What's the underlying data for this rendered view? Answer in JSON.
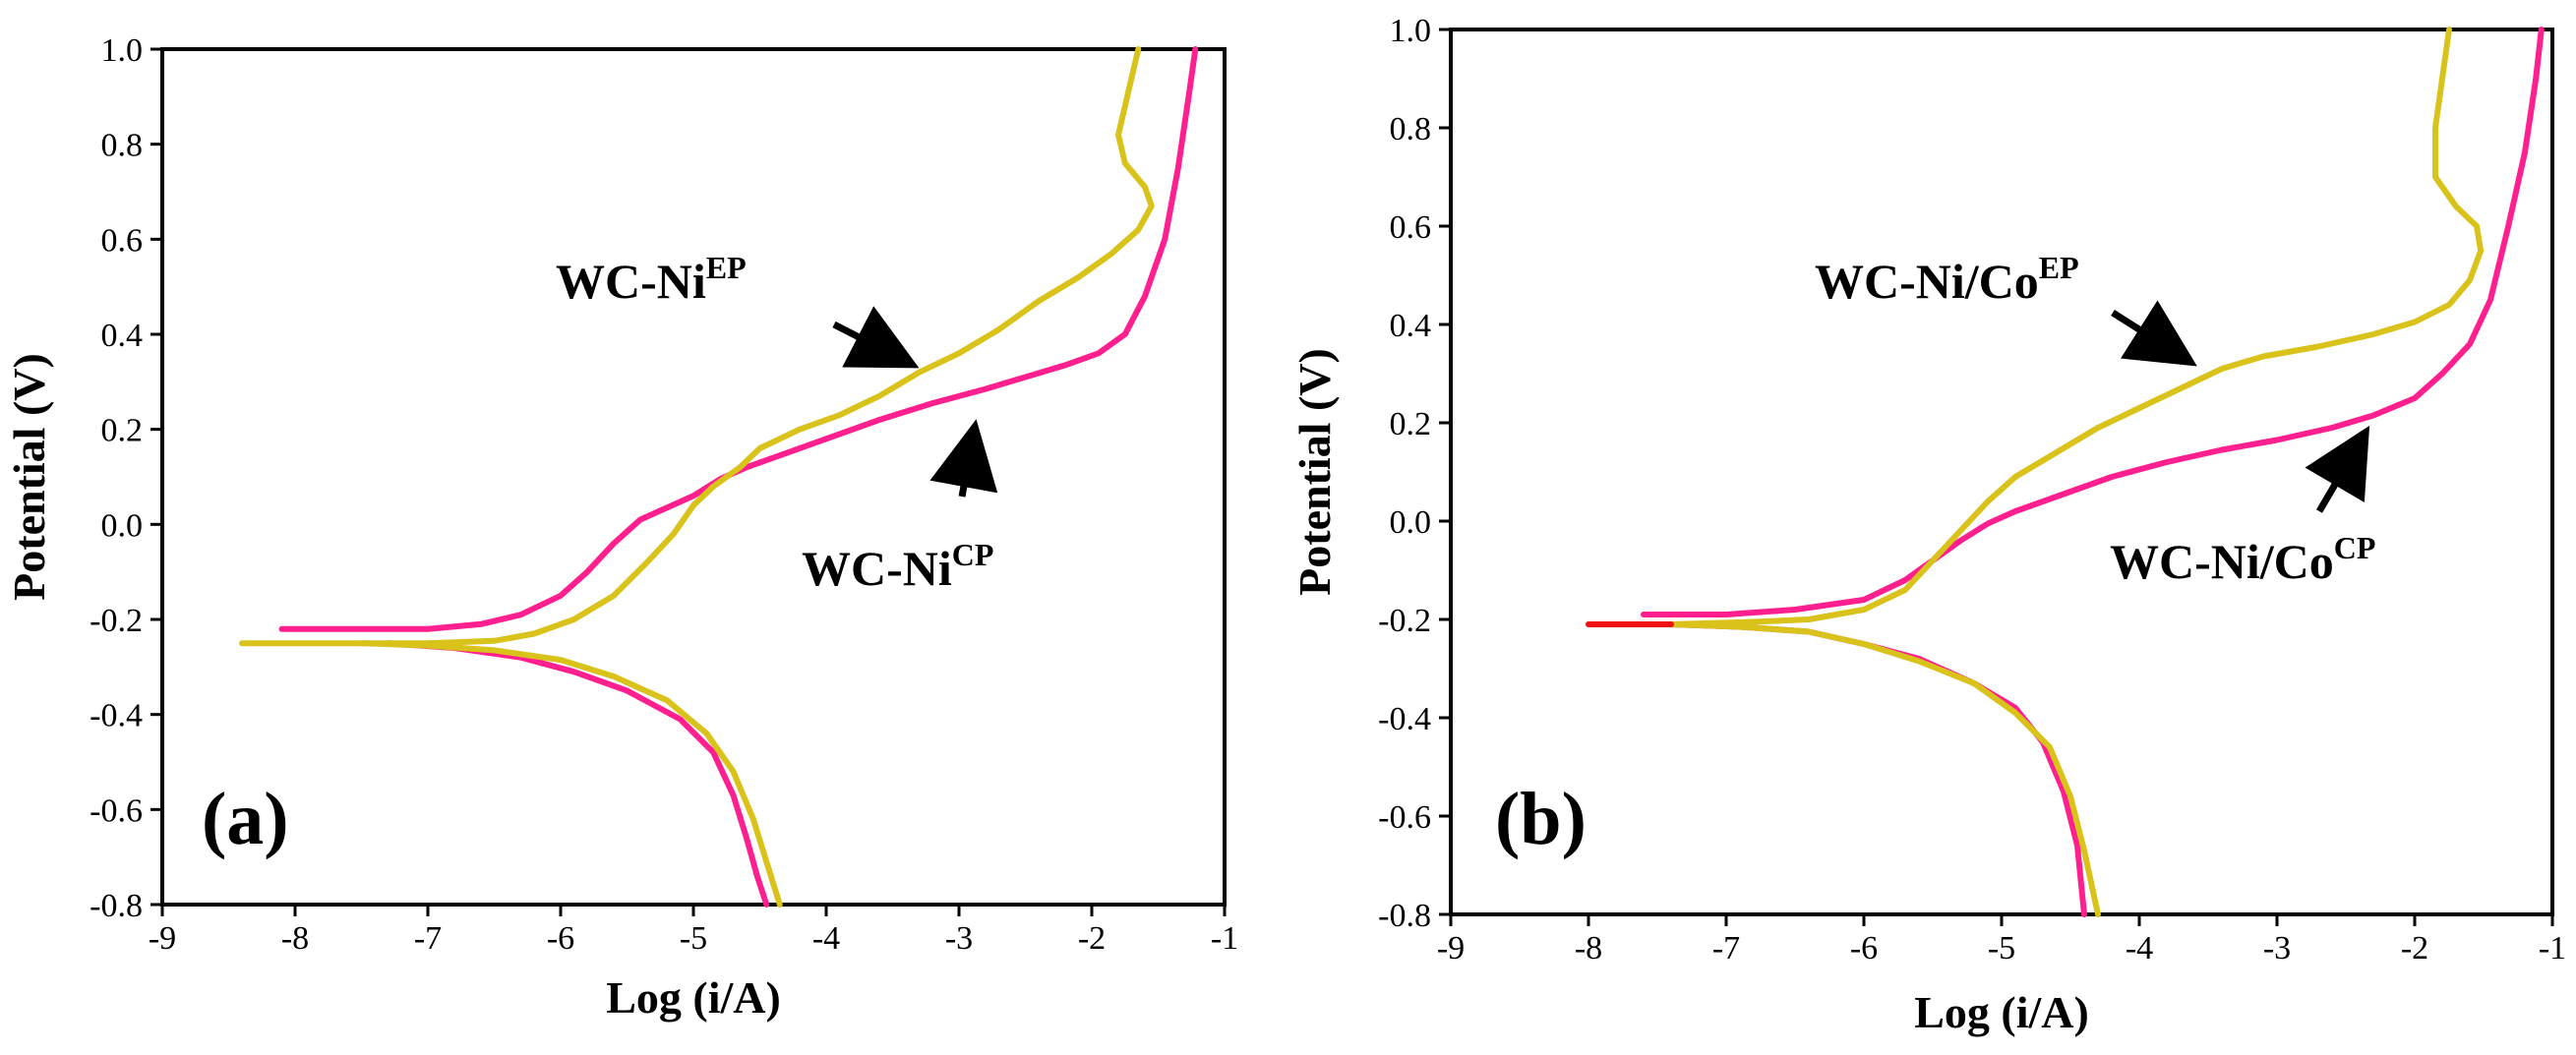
{
  "chart_data": [
    {
      "type": "line",
      "panel_label": "(a)",
      "xlabel": "Log (i/A)",
      "ylabel": "Potential (V)",
      "xlim": [
        -9,
        -1
      ],
      "ylim": [
        -0.8,
        1.0
      ],
      "xticks": [
        "-9",
        "-8",
        "-7",
        "-6",
        "-5",
        "-4",
        "-3",
        "-2",
        "-1"
      ],
      "yticks": [
        "-0.8",
        "-0.6",
        "-0.4",
        "-0.2",
        "0.0",
        "0.2",
        "0.4",
        "0.6",
        "0.8",
        "1.0"
      ],
      "series": [
        {
          "name": "WC-NiCP",
          "color": "#ff1f8e",
          "points": [
            [
              -8.1,
              -0.22
            ],
            [
              -7.5,
              -0.22
            ],
            [
              -7.0,
              -0.22
            ],
            [
              -6.6,
              -0.21
            ],
            [
              -6.3,
              -0.19
            ],
            [
              -6.0,
              -0.15
            ],
            [
              -5.8,
              -0.1
            ],
            [
              -5.6,
              -0.04
            ],
            [
              -5.4,
              0.01
            ],
            [
              -5.2,
              0.035
            ],
            [
              -5.0,
              0.06
            ],
            [
              -4.8,
              0.095
            ],
            [
              -4.6,
              0.12
            ],
            [
              -4.3,
              0.15
            ],
            [
              -4.0,
              0.18
            ],
            [
              -3.6,
              0.22
            ],
            [
              -3.2,
              0.255
            ],
            [
              -2.8,
              0.285
            ],
            [
              -2.5,
              0.31
            ],
            [
              -2.2,
              0.335
            ],
            [
              -1.95,
              0.36
            ],
            [
              -1.75,
              0.4
            ],
            [
              -1.6,
              0.48
            ],
            [
              -1.45,
              0.6
            ],
            [
              -1.35,
              0.75
            ],
            [
              -1.27,
              0.9
            ],
            [
              -1.22,
              1.0
            ]
          ],
          "cathodic": [
            [
              -7.3,
              -0.25
            ],
            [
              -6.8,
              -0.26
            ],
            [
              -6.3,
              -0.28
            ],
            [
              -5.9,
              -0.31
            ],
            [
              -5.5,
              -0.35
            ],
            [
              -5.1,
              -0.41
            ],
            [
              -4.85,
              -0.48
            ],
            [
              -4.7,
              -0.57
            ],
            [
              -4.6,
              -0.66
            ],
            [
              -4.52,
              -0.74
            ],
            [
              -4.45,
              -0.8
            ]
          ]
        },
        {
          "name": "WC-NiEP",
          "color": "#d9c21a",
          "points": [
            [
              -8.4,
              -0.25
            ],
            [
              -7.5,
              -0.25
            ],
            [
              -7.0,
              -0.25
            ],
            [
              -6.5,
              -0.245
            ],
            [
              -6.2,
              -0.23
            ],
            [
              -5.9,
              -0.2
            ],
            [
              -5.6,
              -0.15
            ],
            [
              -5.35,
              -0.08
            ],
            [
              -5.15,
              -0.02
            ],
            [
              -5.0,
              0.04
            ],
            [
              -4.85,
              0.08
            ],
            [
              -4.65,
              0.12
            ],
            [
              -4.5,
              0.16
            ],
            [
              -4.2,
              0.2
            ],
            [
              -3.9,
              0.23
            ],
            [
              -3.6,
              0.27
            ],
            [
              -3.3,
              0.32
            ],
            [
              -3.0,
              0.36
            ],
            [
              -2.7,
              0.41
            ],
            [
              -2.4,
              0.47
            ],
            [
              -2.1,
              0.52
            ],
            [
              -1.85,
              0.57
            ],
            [
              -1.65,
              0.62
            ],
            [
              -1.55,
              0.67
            ],
            [
              -1.6,
              0.71
            ],
            [
              -1.75,
              0.76
            ],
            [
              -1.8,
              0.82
            ],
            [
              -1.75,
              0.88
            ],
            [
              -1.7,
              0.94
            ],
            [
              -1.65,
              1.0
            ]
          ],
          "cathodic": [
            [
              -7.5,
              -0.25
            ],
            [
              -7.0,
              -0.255
            ],
            [
              -6.5,
              -0.265
            ],
            [
              -6.0,
              -0.285
            ],
            [
              -5.6,
              -0.32
            ],
            [
              -5.2,
              -0.37
            ],
            [
              -4.9,
              -0.44
            ],
            [
              -4.7,
              -0.52
            ],
            [
              -4.55,
              -0.62
            ],
            [
              -4.45,
              -0.71
            ],
            [
              -4.35,
              -0.8
            ]
          ]
        }
      ],
      "annotations": [
        {
          "text": "WC-Ni",
          "superscript": "EP"
        },
        {
          "text": "WC-Ni",
          "superscript": "CP"
        }
      ]
    },
    {
      "type": "line",
      "panel_label": "(b)",
      "xlabel": "Log (i/A)",
      "ylabel": "Potential (V)",
      "xlim": [
        -9,
        -1
      ],
      "ylim": [
        -0.8,
        1.0
      ],
      "xticks": [
        "-9",
        "-8",
        "-7",
        "-6",
        "-5",
        "-4",
        "-3",
        "-2",
        "-1"
      ],
      "yticks": [
        "-0.8",
        "-0.6",
        "-0.4",
        "-0.2",
        "0.0",
        "0.2",
        "0.4",
        "0.6",
        "0.8",
        "1.0"
      ],
      "series": [
        {
          "name": "WC-Ni/CoCP",
          "color": "#ff1f8e",
          "points": [
            [
              -7.6,
              -0.19
            ],
            [
              -7.0,
              -0.19
            ],
            [
              -6.5,
              -0.18
            ],
            [
              -6.0,
              -0.16
            ],
            [
              -5.7,
              -0.12
            ],
            [
              -5.5,
              -0.08
            ],
            [
              -5.3,
              -0.04
            ],
            [
              -5.1,
              -0.005
            ],
            [
              -4.9,
              0.02
            ],
            [
              -4.6,
              0.05
            ],
            [
              -4.2,
              0.09
            ],
            [
              -3.8,
              0.12
            ],
            [
              -3.4,
              0.145
            ],
            [
              -3.0,
              0.165
            ],
            [
              -2.6,
              0.19
            ],
            [
              -2.3,
              0.215
            ],
            [
              -2.0,
              0.25
            ],
            [
              -1.8,
              0.3
            ],
            [
              -1.6,
              0.36
            ],
            [
              -1.45,
              0.45
            ],
            [
              -1.32,
              0.6
            ],
            [
              -1.2,
              0.75
            ],
            [
              -1.12,
              0.9
            ],
            [
              -1.08,
              1.0
            ]
          ],
          "cathodic": [
            [
              -7.4,
              -0.21
            ],
            [
              -6.9,
              -0.215
            ],
            [
              -6.4,
              -0.225
            ],
            [
              -6.0,
              -0.25
            ],
            [
              -5.6,
              -0.28
            ],
            [
              -5.2,
              -0.33
            ],
            [
              -4.9,
              -0.38
            ],
            [
              -4.7,
              -0.45
            ],
            [
              -4.55,
              -0.55
            ],
            [
              -4.45,
              -0.66
            ],
            [
              -4.4,
              -0.8
            ]
          ]
        },
        {
          "name": "WC-Ni/CoEP",
          "color": "#d9c21a",
          "points": [
            [
              -7.4,
              -0.21
            ],
            [
              -6.8,
              -0.205
            ],
            [
              -6.4,
              -0.2
            ],
            [
              -6.0,
              -0.18
            ],
            [
              -5.7,
              -0.14
            ],
            [
              -5.5,
              -0.08
            ],
            [
              -5.3,
              -0.02
            ],
            [
              -5.1,
              0.04
            ],
            [
              -4.9,
              0.09
            ],
            [
              -4.6,
              0.14
            ],
            [
              -4.3,
              0.19
            ],
            [
              -4.0,
              0.23
            ],
            [
              -3.7,
              0.27
            ],
            [
              -3.4,
              0.31
            ],
            [
              -3.1,
              0.335
            ],
            [
              -2.7,
              0.355
            ],
            [
              -2.3,
              0.38
            ],
            [
              -2.0,
              0.405
            ],
            [
              -1.75,
              0.44
            ],
            [
              -1.6,
              0.49
            ],
            [
              -1.52,
              0.55
            ],
            [
              -1.55,
              0.6
            ],
            [
              -1.7,
              0.64
            ],
            [
              -1.85,
              0.7
            ],
            [
              -1.85,
              0.8
            ],
            [
              -1.8,
              0.9
            ],
            [
              -1.75,
              1.0
            ]
          ],
          "cathodic": [
            [
              -7.4,
              -0.21
            ],
            [
              -6.9,
              -0.215
            ],
            [
              -6.4,
              -0.225
            ],
            [
              -6.0,
              -0.25
            ],
            [
              -5.6,
              -0.285
            ],
            [
              -5.2,
              -0.33
            ],
            [
              -4.9,
              -0.39
            ],
            [
              -4.65,
              -0.46
            ],
            [
              -4.5,
              -0.56
            ],
            [
              -4.4,
              -0.67
            ],
            [
              -4.3,
              -0.8
            ]
          ]
        },
        {
          "name": "red-segment",
          "color": "#ee1111",
          "points": [
            [
              -8.0,
              -0.21
            ],
            [
              -7.4,
              -0.21
            ]
          ],
          "cathodic": []
        }
      ],
      "annotations": [
        {
          "text": "WC-Ni/Co",
          "superscript": "EP"
        },
        {
          "text": "WC-Ni/Co",
          "superscript": "CP"
        }
      ]
    }
  ]
}
